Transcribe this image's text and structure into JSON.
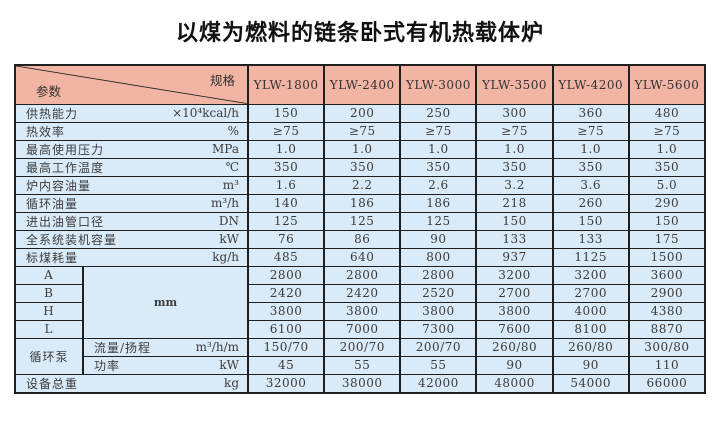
{
  "page": {
    "title": "以煤为燃料的链条卧式有机热载体炉"
  },
  "table": {
    "corner": {
      "top_right": "规格",
      "bottom_left": "参数"
    },
    "columns": [
      "YLW-1800",
      "YLW-2400",
      "YLW-3000",
      "YLW-3500",
      "YLW-4200",
      "YLW-5600"
    ],
    "dimension_unit": "mm",
    "pump_group_label": "循环泵",
    "colors": {
      "header_bg": "#f2b4a3",
      "cell_bg": "#d9eaf8",
      "border": "#1f1f1f"
    },
    "rows": [
      {
        "type": "param",
        "label": "供热能力",
        "unit": "×10⁴kcal/h",
        "values": [
          "150",
          "200",
          "250",
          "300",
          "360",
          "480"
        ]
      },
      {
        "type": "param",
        "label": "热效率",
        "unit": "%",
        "values": [
          "≥75",
          "≥75",
          "≥75",
          "≥75",
          "≥75",
          "≥75"
        ]
      },
      {
        "type": "param",
        "label": "最高使用压力",
        "unit": "MPa",
        "values": [
          "1.0",
          "1.0",
          "1.0",
          "1.0",
          "1.0",
          "1.0"
        ]
      },
      {
        "type": "param",
        "label": "最高工作温度",
        "unit": "℃",
        "values": [
          "350",
          "350",
          "350",
          "350",
          "350",
          "350"
        ]
      },
      {
        "type": "param",
        "label": "炉内容油量",
        "unit": "m³",
        "values": [
          "1.6",
          "2.2",
          "2.6",
          "3.2",
          "3.6",
          "5.0"
        ]
      },
      {
        "type": "param",
        "label": "循环油量",
        "unit": "m³/h",
        "values": [
          "140",
          "186",
          "186",
          "218",
          "260",
          "290"
        ]
      },
      {
        "type": "param",
        "label": "进出油管口径",
        "unit": "DN",
        "values": [
          "125",
          "125",
          "125",
          "150",
          "150",
          "150"
        ]
      },
      {
        "type": "param",
        "label": "全系统装机容量",
        "unit": "kW",
        "values": [
          "76",
          "86",
          "90",
          "133",
          "133",
          "175"
        ]
      },
      {
        "type": "param",
        "label": "标煤耗量",
        "unit": "kg/h",
        "values": [
          "485",
          "640",
          "800",
          "937",
          "1125",
          "1500"
        ]
      },
      {
        "type": "dim",
        "label": "A",
        "values": [
          "2800",
          "2800",
          "2800",
          "3200",
          "3200",
          "3600"
        ]
      },
      {
        "type": "dim",
        "label": "B",
        "values": [
          "2420",
          "2420",
          "2520",
          "2700",
          "2700",
          "2900"
        ]
      },
      {
        "type": "dim",
        "label": "H",
        "values": [
          "3800",
          "3800",
          "3800",
          "3800",
          "4000",
          "4380"
        ]
      },
      {
        "type": "dim",
        "label": "L",
        "values": [
          "6100",
          "7000",
          "7300",
          "7600",
          "8100",
          "8870"
        ]
      },
      {
        "type": "pump",
        "label": "流量/扬程",
        "unit": "m³/h/m",
        "values": [
          "150/70",
          "200/70",
          "200/70",
          "260/80",
          "260/80",
          "300/80"
        ]
      },
      {
        "type": "pump",
        "label": "功率",
        "unit": "kW",
        "values": [
          "45",
          "55",
          "55",
          "90",
          "90",
          "110"
        ]
      },
      {
        "type": "param",
        "label": "设备总重",
        "unit": "kg",
        "values": [
          "32000",
          "38000",
          "42000",
          "48000",
          "54000",
          "66000"
        ]
      }
    ]
  }
}
